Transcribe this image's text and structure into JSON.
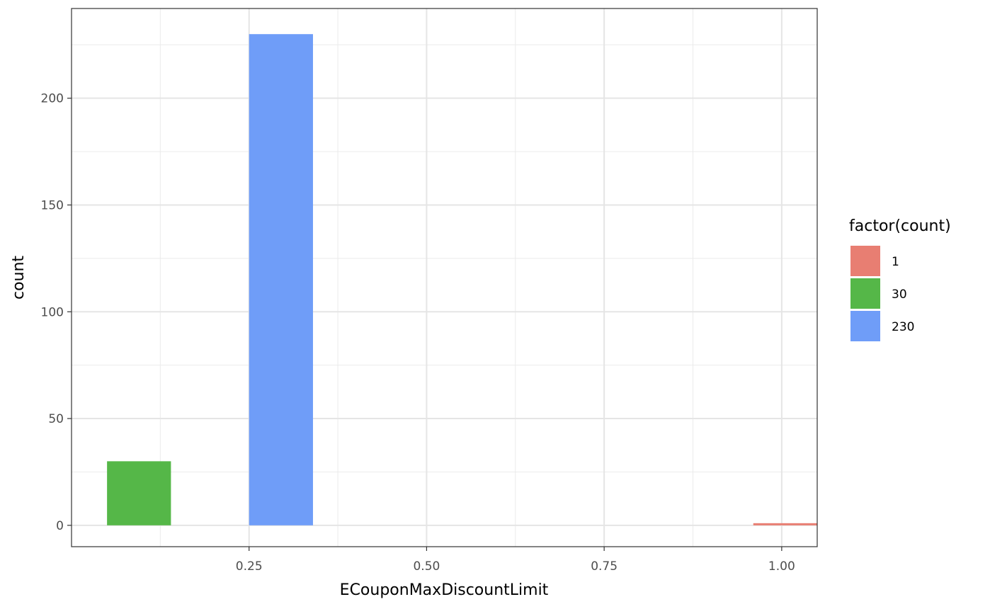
{
  "chart_data": {
    "type": "bar",
    "title": "",
    "xlabel": "ECouponMaxDiscountLimit",
    "ylabel": "count",
    "xlim": [
      0.0,
      1.05
    ],
    "ylim": [
      -10,
      242
    ],
    "x_ticks": [
      0.25,
      0.5,
      0.75,
      1.0
    ],
    "x_tick_labels": [
      "0.25",
      "0.50",
      "0.75",
      "1.00"
    ],
    "y_ticks": [
      0,
      50,
      100,
      150,
      200
    ],
    "y_tick_labels": [
      "0",
      "50",
      "100",
      "150",
      "200"
    ],
    "grid": true,
    "legend": {
      "title": "factor(count)",
      "placement": "right",
      "entries": [
        {
          "label": "1",
          "color": "#E87E72"
        },
        {
          "label": "30",
          "color": "#55B748"
        },
        {
          "label": "230",
          "color": "#6F9DF8"
        }
      ]
    },
    "bars": [
      {
        "x_start": 0.05,
        "x_end": 0.14,
        "value": 30,
        "group": "30",
        "color": "#55B748"
      },
      {
        "x_start": 0.25,
        "x_end": 0.34,
        "value": 230,
        "group": "230",
        "color": "#6F9DF8"
      },
      {
        "x_start": 0.96,
        "x_end": 1.05,
        "value": 1,
        "group": "1",
        "color": "#E87E72"
      }
    ]
  }
}
